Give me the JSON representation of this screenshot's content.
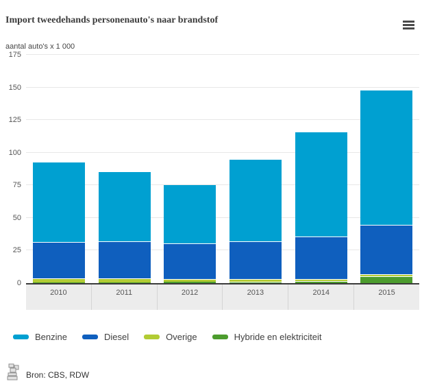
{
  "header": {
    "title": "Import tweedehands personenauto's naar brandstof"
  },
  "chart_data": {
    "type": "bar",
    "stacked": true,
    "title": "Import tweedehands personenauto's naar brandstof",
    "unit_label": "aantal auto's x 1 000",
    "categories": [
      "2010",
      "2011",
      "2012",
      "2013",
      "2014",
      "2015"
    ],
    "series": [
      {
        "name": "Benzine",
        "color": "#00a0d1",
        "values": [
          61.0,
          53.0,
          44.5,
          62.5,
          80.0,
          103.0
        ]
      },
      {
        "name": "Diesel",
        "color": "#0f5fbe",
        "values": [
          27.5,
          28.5,
          27.5,
          29.0,
          32.5,
          37.5
        ]
      },
      {
        "name": "Overige",
        "color": "#b2cc34",
        "values": [
          3.4,
          3.0,
          2.3,
          1.7,
          1.2,
          1.5
        ]
      },
      {
        "name": "Hybride en elektriciteit",
        "color": "#4c9c2e",
        "values": [
          0.4,
          0.6,
          0.8,
          1.3,
          1.8,
          5.5
        ]
      }
    ],
    "totals": [
      92.3,
      85.1,
      75.1,
      94.5,
      115.5,
      147.5
    ],
    "stack_order_bottom_to_top": [
      "Hybride en elektriciteit",
      "Overige",
      "Diesel",
      "Benzine"
    ],
    "y_axis": {
      "ticks": [
        0,
        25,
        50,
        75,
        100,
        125,
        150,
        175
      ],
      "max": 175
    },
    "grid": true,
    "legend_position": "bottom"
  },
  "colors": {
    "grid": "#e7e7e7",
    "axis": "#3a3a3a",
    "band": "#ececec"
  },
  "footer": {
    "source_label": "Bron: CBS, RDW"
  }
}
